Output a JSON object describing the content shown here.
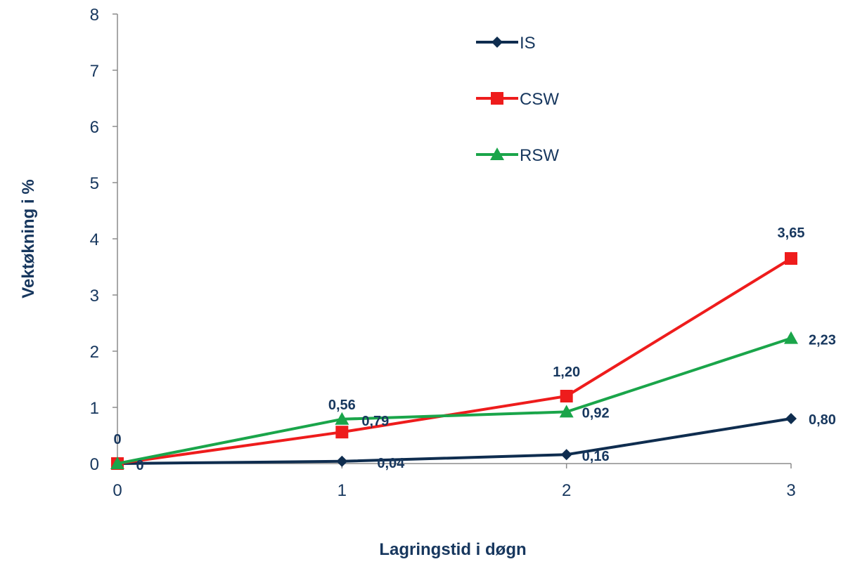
{
  "chart_data": {
    "type": "line",
    "x": [
      0,
      1,
      2,
      3
    ],
    "xlabel": "Lagringstid i døgn",
    "ylabel": "Vektøkning i %",
    "xlim": [
      0,
      3
    ],
    "ylim": [
      0,
      8
    ],
    "x_ticks": [
      "0",
      "1",
      "2",
      "3"
    ],
    "y_ticks": [
      "0",
      "1",
      "2",
      "3",
      "4",
      "5",
      "6",
      "7",
      "8"
    ],
    "grid": false,
    "legend_position": "top-center",
    "series": [
      {
        "name": "IS",
        "values": [
          0,
          0.04,
          0.16,
          0.8
        ],
        "labels": [
          "0",
          "0,04",
          "0,16",
          "0,80"
        ],
        "color": "#0f2d4f",
        "marker": "diamond"
      },
      {
        "name": "CSW",
        "values": [
          0,
          0.56,
          1.2,
          3.65
        ],
        "labels": [
          "0",
          "0,56",
          "1,20",
          "3,65"
        ],
        "color": "#ee1c1c",
        "marker": "square"
      },
      {
        "name": "RSW",
        "values": [
          0,
          0.79,
          0.92,
          2.23
        ],
        "labels": [
          "",
          "0,79",
          "0,92",
          "2,23"
        ],
        "color": "#1aa54a",
        "marker": "triangle"
      }
    ]
  }
}
